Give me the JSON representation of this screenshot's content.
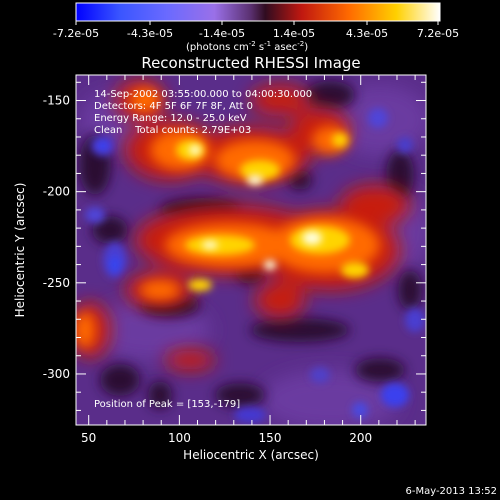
{
  "colorbar": {
    "tick_labels": [
      "-7.2e-05",
      "-4.3e-05",
      "-1.4e-05",
      "1.4e-05",
      "4.3e-05",
      "7.2e-05"
    ],
    "unit_label": "(photons cm",
    "unit_sup1": "-2",
    "unit_mid1": " s",
    "unit_sup2": "-1",
    "unit_mid2": " asec",
    "unit_sup3": "-2",
    "unit_close": ")"
  },
  "title": "Reconstructed RHESSI Image",
  "annotations": {
    "time_range": "14-Sep-2002 03:55:00.000 to 04:00:30.000",
    "detectors": "Detectors: 4F 5F 6F 7F 8F, Att 0",
    "energy_range": "Energy Range: 12.0 - 25.0 keV",
    "algorithm": "Clean    Total counts: 2.79E+03",
    "peak": "Position of Peak = [153,-179]"
  },
  "axes": {
    "xlabel": "Heliocentric X (arcsec)",
    "ylabel": "Heliocentric Y (arcsec)",
    "x_ticks": [
      "50",
      "100",
      "150",
      "200"
    ],
    "y_ticks": [
      "-150",
      "-200",
      "-250",
      "-300"
    ],
    "x_range": [
      43,
      236
    ],
    "y_range": [
      -328,
      -136
    ]
  },
  "footer": {
    "date": "6-May-2013 13:52"
  }
}
